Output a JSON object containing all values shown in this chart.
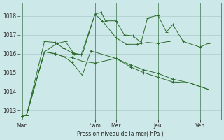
{
  "background_color": "#cce8e8",
  "grid_color": "#aacccc",
  "line_color": "#2d6e2d",
  "vline_color": "#5a8a6a",
  "xlabel": "Pression niveau de la mer( hPa )",
  "ylim": [
    1012.5,
    1018.7
  ],
  "yticks": [
    1013,
    1014,
    1015,
    1016,
    1017,
    1018
  ],
  "xtick_labels": [
    "Mar",
    "Sam",
    "Mer",
    "Jeu",
    "Ven"
  ],
  "xtick_positions": [
    0,
    3.5,
    4.5,
    6.5,
    8.5
  ],
  "xlim": [
    -0.1,
    9.5
  ],
  "vline_positions": [
    0.05,
    3.5,
    4.5,
    6.5,
    8.5
  ],
  "lines": [
    {
      "x": [
        0.05,
        0.25,
        1.1,
        1.7,
        2.1,
        2.5,
        2.9,
        3.5,
        3.8,
        4.0,
        4.5,
        4.9,
        5.3,
        5.7,
        6.0,
        6.5,
        6.9,
        7.2,
        7.7,
        8.5,
        8.9
      ],
      "y": [
        1012.7,
        1012.75,
        1016.1,
        1016.55,
        1016.65,
        1016.0,
        1015.95,
        1018.1,
        1018.2,
        1017.75,
        1017.75,
        1017.0,
        1016.95,
        1016.6,
        1017.9,
        1018.05,
        1017.15,
        1017.55,
        1016.65,
        1016.35,
        1016.55
      ]
    },
    {
      "x": [
        0.05,
        0.25,
        1.1,
        1.6,
        2.0,
        2.4,
        2.85,
        3.5,
        3.85,
        4.5,
        5.0,
        5.5,
        6.0,
        6.5,
        7.0
      ],
      "y": [
        1012.7,
        1012.75,
        1016.65,
        1016.6,
        1016.3,
        1016.05,
        1015.95,
        1018.1,
        1017.75,
        1016.85,
        1016.5,
        1016.5,
        1016.6,
        1016.55,
        1016.65
      ]
    },
    {
      "x": [
        0.05,
        0.25,
        1.1,
        1.6,
        2.0,
        2.4,
        2.9,
        3.3,
        4.5,
        5.2,
        5.8,
        6.5,
        7.2,
        8.0,
        8.9
      ],
      "y": [
        1012.7,
        1012.75,
        1016.1,
        1016.0,
        1015.85,
        1015.55,
        1014.85,
        1016.15,
        1015.75,
        1015.3,
        1015.0,
        1014.75,
        1014.5,
        1014.45,
        1014.1
      ]
    },
    {
      "x": [
        0.05,
        0.25,
        1.1,
        1.6,
        2.0,
        2.4,
        2.9,
        3.5,
        4.5,
        5.2,
        5.8,
        6.5,
        7.2,
        8.0,
        8.9
      ],
      "y": [
        1012.7,
        1012.75,
        1016.1,
        1016.0,
        1015.85,
        1015.8,
        1015.6,
        1015.5,
        1015.75,
        1015.4,
        1015.15,
        1014.95,
        1014.65,
        1014.45,
        1014.1
      ]
    }
  ]
}
